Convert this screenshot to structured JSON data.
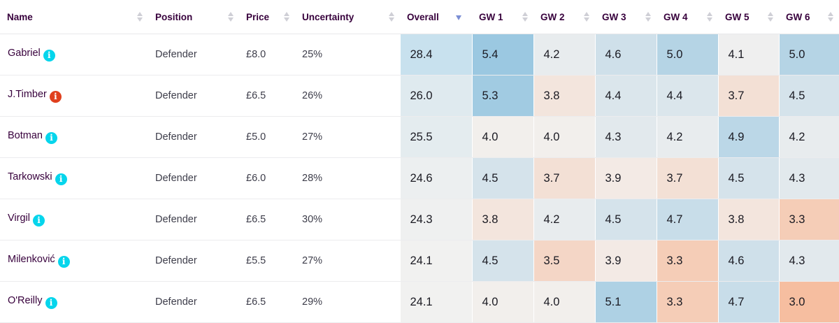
{
  "columns": {
    "name": "Name",
    "position": "Position",
    "price": "Price",
    "uncertainty": "Uncertainty",
    "overall": "Overall",
    "gw1": "GW 1",
    "gw2": "GW 2",
    "gw3": "GW 3",
    "gw4": "GW 4",
    "gw5": "GW 5",
    "gw6": "GW 6"
  },
  "sort": {
    "column": "Overall",
    "direction": "descending"
  },
  "icon_colors": {
    "cyan": "#05d5ec",
    "red": "#e0401e"
  },
  "rows": [
    {
      "name": "Gabriel",
      "icon": "info-icon",
      "icon_color": "cyan",
      "position": "Defender",
      "price": "£8.0",
      "uncertainty": "25%",
      "overall": "28.4",
      "gw": [
        "5.4",
        "4.2",
        "4.6",
        "5.0",
        "4.1",
        "5.0"
      ]
    },
    {
      "name": "J.Timber",
      "icon": "info-icon",
      "icon_color": "red",
      "position": "Defender",
      "price": "£6.5",
      "uncertainty": "26%",
      "overall": "26.0",
      "gw": [
        "5.3",
        "3.8",
        "4.4",
        "4.4",
        "3.7",
        "4.5"
      ]
    },
    {
      "name": "Botman",
      "icon": "info-icon",
      "icon_color": "cyan",
      "position": "Defender",
      "price": "£5.0",
      "uncertainty": "27%",
      "overall": "25.5",
      "gw": [
        "4.0",
        "4.0",
        "4.3",
        "4.2",
        "4.9",
        "4.2"
      ]
    },
    {
      "name": "Tarkowski",
      "icon": "info-icon",
      "icon_color": "cyan",
      "position": "Defender",
      "price": "£6.0",
      "uncertainty": "28%",
      "overall": "24.6",
      "gw": [
        "4.5",
        "3.7",
        "3.9",
        "3.7",
        "4.5",
        "4.3"
      ]
    },
    {
      "name": "Virgil",
      "icon": "info-icon",
      "icon_color": "cyan",
      "position": "Defender",
      "price": "£6.5",
      "uncertainty": "30%",
      "overall": "24.3",
      "gw": [
        "3.8",
        "4.2",
        "4.5",
        "4.7",
        "3.8",
        "3.3"
      ]
    },
    {
      "name": "Milenković",
      "icon": "info-icon",
      "icon_color": "cyan",
      "position": "Defender",
      "price": "£5.5",
      "uncertainty": "27%",
      "overall": "24.1",
      "gw": [
        "4.5",
        "3.5",
        "3.9",
        "3.3",
        "4.6",
        "4.3"
      ]
    },
    {
      "name": "O'Reilly",
      "icon": "info-icon",
      "icon_color": "cyan",
      "position": "Defender",
      "price": "£6.5",
      "uncertainty": "29%",
      "overall": "24.1",
      "gw": [
        "4.0",
        "4.0",
        "5.1",
        "3.3",
        "4.7",
        "3.0"
      ]
    }
  ]
}
